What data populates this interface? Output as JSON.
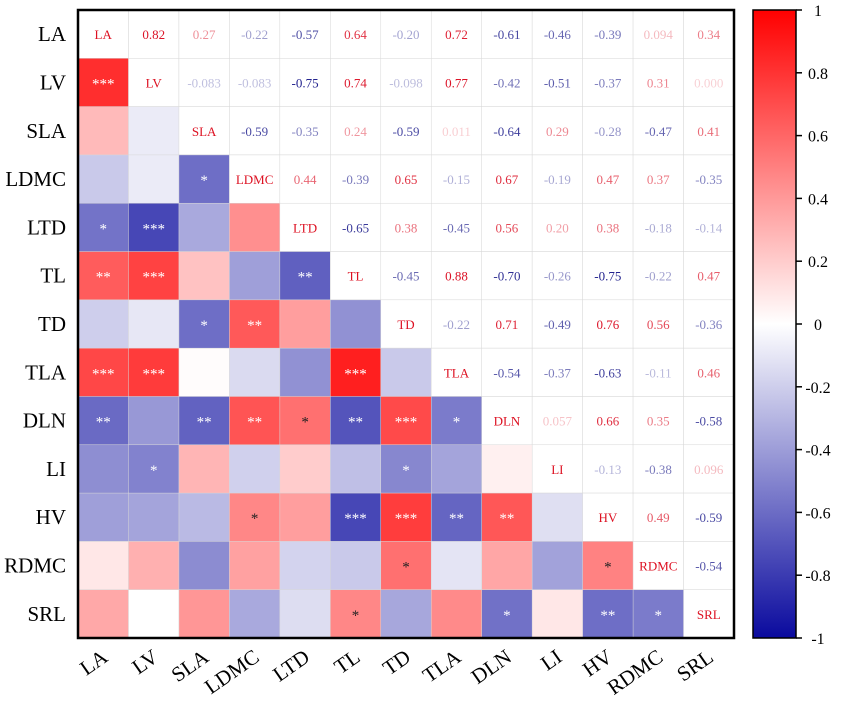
{
  "chart_data": {
    "type": "heatmap",
    "title": "",
    "variables": [
      "LA",
      "LV",
      "SLA",
      "LDMC",
      "LTD",
      "TL",
      "TD",
      "TLA",
      "DLN",
      "LI",
      "HV",
      "RDMC",
      "SRL"
    ],
    "upper_labels": [
      [
        "",
        "0.82",
        "0.27",
        "-0.22",
        "-0.57",
        "0.64",
        "-0.20",
        "0.72",
        "-0.61",
        "-0.46",
        "-0.39",
        "0.094",
        "0.34"
      ],
      [
        "",
        "",
        "-0.083",
        "-0.083",
        "-0.75",
        "0.74",
        "-0.098",
        "0.77",
        "-0.42",
        "-0.51",
        "-0.37",
        "0.31",
        "0.000"
      ],
      [
        "",
        "",
        "",
        "-0.59",
        "-0.35",
        "0.24",
        "-0.59",
        "0.011",
        "-0.64",
        "0.29",
        "-0.28",
        "-0.47",
        "0.41"
      ],
      [
        "",
        "",
        "",
        "",
        "0.44",
        "-0.39",
        "0.65",
        "-0.15",
        "0.67",
        "-0.19",
        "0.47",
        "0.37",
        "-0.35"
      ],
      [
        "",
        "",
        "",
        "",
        "",
        "-0.65",
        "0.38",
        "-0.45",
        "0.56",
        "0.20",
        "0.38",
        "-0.18",
        "-0.14"
      ],
      [
        "",
        "",
        "",
        "",
        "",
        "",
        "-0.45",
        "0.88",
        "-0.70",
        "-0.26",
        "-0.75",
        "-0.22",
        "0.47"
      ],
      [
        "",
        "",
        "",
        "",
        "",
        "",
        "",
        "-0.22",
        "0.71",
        "-0.49",
        "0.76",
        "0.56",
        "-0.36"
      ],
      [
        "",
        "",
        "",
        "",
        "",
        "",
        "",
        "",
        "-0.54",
        "-0.37",
        "-0.63",
        "-0.11",
        "0.46"
      ],
      [
        "",
        "",
        "",
        "",
        "",
        "",
        "",
        "",
        "",
        "0.057",
        "0.66",
        "0.35",
        "-0.58"
      ],
      [
        "",
        "",
        "",
        "",
        "",
        "",
        "",
        "",
        "",
        "",
        "-0.13",
        "-0.38",
        "0.096"
      ],
      [
        "",
        "",
        "",
        "",
        "",
        "",
        "",
        "",
        "",
        "",
        "",
        "0.49",
        "-0.59"
      ],
      [
        "",
        "",
        "",
        "",
        "",
        "",
        "",
        "",
        "",
        "",
        "",
        "",
        "-0.54"
      ],
      [
        "",
        "",
        "",
        "",
        "",
        "",
        "",
        "",
        "",
        "",
        "",
        "",
        ""
      ]
    ],
    "significance": [
      [
        "",
        "",
        "",
        "",
        "",
        "",
        "",
        "",
        "",
        "",
        "",
        "",
        ""
      ],
      [
        "***",
        "",
        "",
        "",
        "",
        "",
        "",
        "",
        "",
        "",
        "",
        "",
        ""
      ],
      [
        "",
        "",
        "",
        "",
        "",
        "",
        "",
        "",
        "",
        "",
        "",
        "",
        ""
      ],
      [
        "",
        "",
        "*",
        "",
        "",
        "",
        "",
        "",
        "",
        "",
        "",
        "",
        ""
      ],
      [
        "*",
        "***",
        "",
        "",
        "",
        "",
        "",
        "",
        "",
        "",
        "",
        "",
        ""
      ],
      [
        "**",
        "***",
        "",
        "",
        "**",
        "",
        "",
        "",
        "",
        "",
        "",
        "",
        ""
      ],
      [
        "",
        "",
        "*",
        "**",
        "",
        "",
        "",
        "",
        "",
        "",
        "",
        "",
        ""
      ],
      [
        "***",
        "***",
        "",
        "",
        "",
        "***",
        "",
        "",
        "",
        "",
        "",
        "",
        ""
      ],
      [
        "**",
        "",
        "**",
        "**",
        "*",
        "**",
        "***",
        "*",
        "",
        "",
        "",
        "",
        ""
      ],
      [
        "",
        "*",
        "",
        "",
        "",
        "",
        "*",
        "",
        "",
        "",
        "",
        "",
        ""
      ],
      [
        "",
        "",
        "",
        "*",
        "",
        "***",
        "***",
        "**",
        "**",
        "",
        "",
        "",
        ""
      ],
      [
        "",
        "",
        "",
        "",
        "",
        "",
        "*",
        "",
        "",
        "",
        "*",
        "",
        ""
      ],
      [
        "",
        "",
        "",
        "",
        "",
        "*",
        "",
        "",
        "*",
        "",
        "**",
        "*",
        ""
      ]
    ],
    "colorbar": {
      "min": -1,
      "max": 1,
      "ticks": [
        "1",
        "0.8",
        "0.6",
        "0.4",
        "0.2",
        "0",
        "-0.2",
        "-0.4",
        "-0.6",
        "-0.8",
        "-1"
      ],
      "colors": {
        "negative": "#0a0a9e",
        "zero": "#ffffff",
        "positive": "#ff0000"
      }
    },
    "grid": true
  }
}
